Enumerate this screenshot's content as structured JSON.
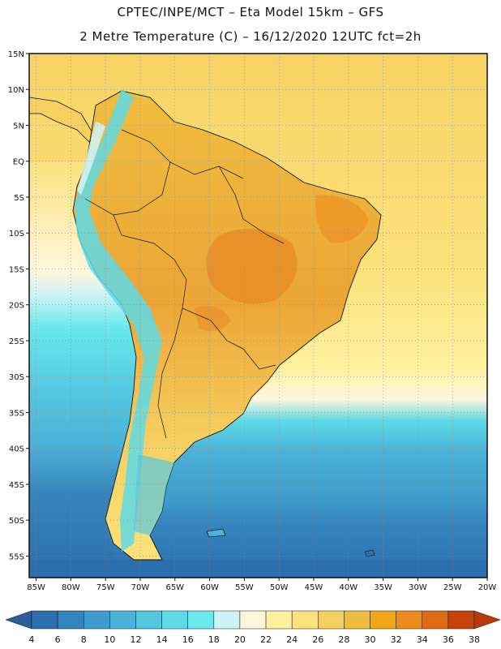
{
  "header": {
    "line1": "CPTEC/INPE/MCT –  Eta Model 15km – GFS",
    "line2": "2 Metre Temperature (C) – 16/12/2020 12UTC fct=2h"
  },
  "map": {
    "lat_labels": [
      "15N",
      "10N",
      "5N",
      "EQ",
      "5S",
      "10S",
      "15S",
      "20S",
      "25S",
      "30S",
      "35S",
      "40S",
      "45S",
      "50S",
      "55S"
    ],
    "lon_labels": [
      "85W",
      "80W",
      "75W",
      "70W",
      "65W",
      "60W",
      "55W",
      "50W",
      "45W",
      "40W",
      "35W",
      "30W",
      "25W",
      "20W"
    ],
    "lat_range": [
      15,
      -58
    ],
    "lon_range": [
      -86,
      -20
    ]
  },
  "colorbar": {
    "labels": [
      "4",
      "6",
      "8",
      "10",
      "12",
      "14",
      "16",
      "18",
      "20",
      "22",
      "24",
      "26",
      "28",
      "30",
      "32",
      "34",
      "36",
      "38"
    ],
    "colors": [
      "#2c6fae",
      "#3584bd",
      "#3f9bcc",
      "#4ab2d8",
      "#55c8e0",
      "#5ed9e6",
      "#66e8ec",
      "#cdf2f6",
      "#fff6dc",
      "#fff0a0",
      "#fbe27c",
      "#f5d060",
      "#edbc3e",
      "#f0a418",
      "#ec8b1e",
      "#e06a12",
      "#c8420a"
    ],
    "low_color": "#2a5f9e",
    "high_color": "#b83a08"
  }
}
